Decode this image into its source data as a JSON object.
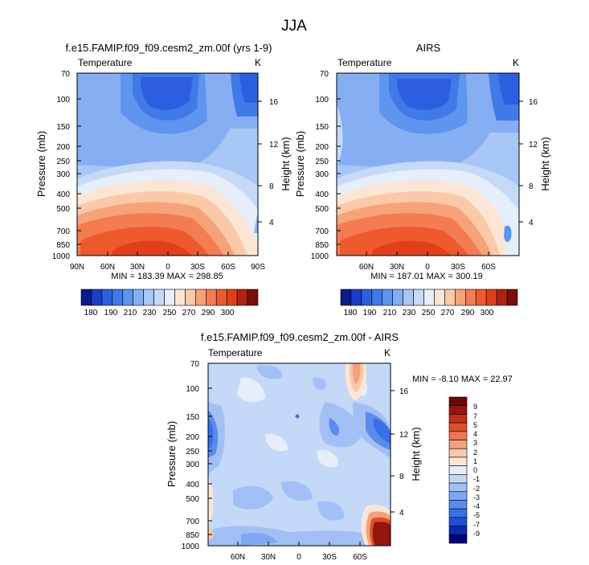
{
  "figure_title": "JJA",
  "chart_data": [
    {
      "type": "contour",
      "title": "f.e15.FAMIP.f09_f09.cesm2_zm.00f (yrs 1-9)",
      "left_label": "Temperature",
      "units": "K",
      "ylabel": "Pressure (mb)",
      "ylabel_right": "Height (km)",
      "pressure_ticks": [
        "70",
        "100",
        "150",
        "200",
        "250",
        "300",
        "400",
        "500",
        "700",
        "850",
        "1000"
      ],
      "height_ticks": [
        "16",
        "12",
        "8",
        "4"
      ],
      "x_ticks": [
        "90N",
        "60N",
        "30N",
        "0",
        "30S",
        "60S",
        "90S"
      ],
      "stats": "MIN = 183.39  MAX = 298.85",
      "colorbar_labels": [
        "180",
        "190",
        "210",
        "230",
        "250",
        "270",
        "290",
        "300"
      ],
      "field": {
        "min": 183.39,
        "max": 298.85
      }
    },
    {
      "type": "contour",
      "title": "AIRS",
      "left_label": "Temperature",
      "units": "K",
      "ylabel": "Pressure (mb)",
      "ylabel_right": "Height (km)",
      "pressure_ticks": [
        "70",
        "100",
        "150",
        "200",
        "250",
        "300",
        "400",
        "500",
        "700",
        "850",
        "1000"
      ],
      "height_ticks": [
        "16",
        "12",
        "8",
        "4"
      ],
      "x_ticks": [
        "60N",
        "30N",
        "0",
        "30S",
        "60S"
      ],
      "stats": "MIN = 187.01  MAX = 300.19",
      "colorbar_labels": [
        "180",
        "190",
        "210",
        "230",
        "250",
        "270",
        "290",
        "300"
      ],
      "field": {
        "min": 187.01,
        "max": 300.19
      }
    },
    {
      "type": "contour",
      "title": "f.e15.FAMIP.f09_f09.cesm2_zm.00f - AIRS",
      "left_label": "Temperature",
      "units": "K",
      "ylabel": "Pressure (mb)",
      "ylabel_right": "Height (km)",
      "pressure_ticks": [
        "70",
        "100",
        "150",
        "200",
        "250",
        "300",
        "400",
        "500",
        "700",
        "850",
        "1000"
      ],
      "height_ticks": [
        "16",
        "12",
        "8",
        "4"
      ],
      "x_ticks": [
        "60N",
        "30N",
        "0",
        "30S",
        "60S"
      ],
      "stats": "MIN = -8.10  MAX = 22.97",
      "colorbar_labels": [
        "9",
        "7",
        "5",
        "4",
        "3",
        "2",
        "1",
        "0",
        "-1",
        "-2",
        "-3",
        "-4",
        "-5",
        "-7",
        "-9"
      ],
      "field": {
        "min": -8.1,
        "max": 22.97
      }
    }
  ],
  "colors": {
    "temp_levels": [
      "#0a1a8c",
      "#1a3dcc",
      "#2c5fe0",
      "#3f7ae8",
      "#5d95ef",
      "#86aff3",
      "#a8c6f6",
      "#c6daf8",
      "#e6eefb",
      "#fbe6d6",
      "#fbc9a8",
      "#f7a37a",
      "#f37c52",
      "#ee5a2e",
      "#e03f1a",
      "#b02212",
      "#7a0f0a"
    ],
    "diff_levels": [
      "#00007a",
      "#0b28b0",
      "#1f4fd6",
      "#3a70e6",
      "#5a8ced",
      "#7ea8f1",
      "#a2c0f5",
      "#c4d8f8",
      "#e6eefb",
      "#fbe6d6",
      "#f8c8ac",
      "#f3a27f",
      "#ee7750",
      "#e04e28",
      "#c0301a",
      "#93170d",
      "#6a0a08"
    ]
  }
}
